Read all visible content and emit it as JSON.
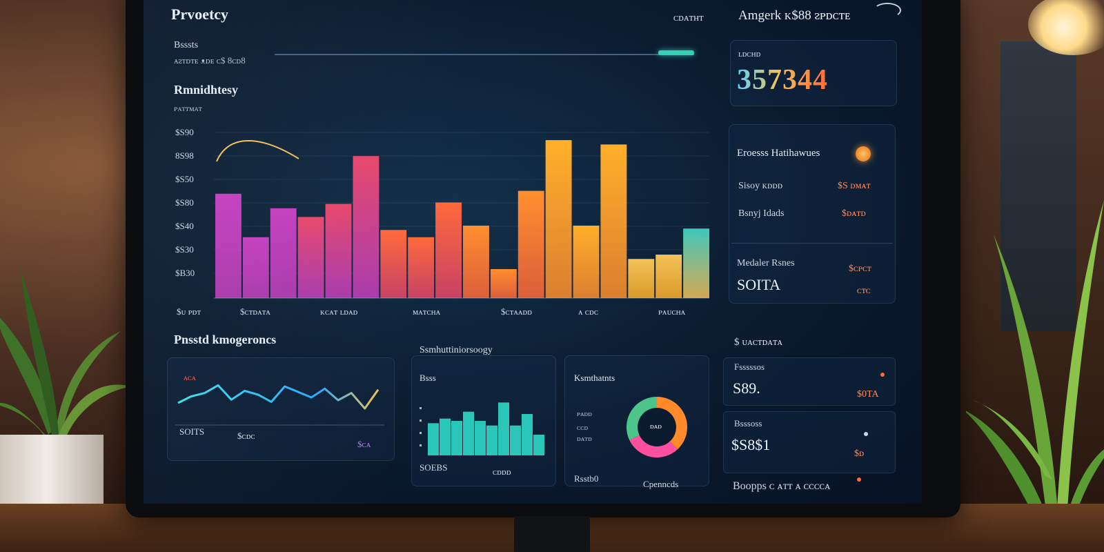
{
  "header": {
    "app_title": "Prvoetcy",
    "right_label": "ᴄᴅᴀᴛʜᴛ",
    "account_label": "Amgerk ᴋ$88 ᴤᴘᴅᴄᴛᴇ"
  },
  "summary": {
    "label": "Bsssts",
    "sub": "ᴀᴤᴛᴅᴛᴇ ᴥᴅᴇ ᴄ$ 8ᴄᴅ8",
    "progress": 0.92
  },
  "main_chart": {
    "title": "Rmnidhtesy",
    "subtitle": "ᴘᴀᴛᴛᴍᴀᴛ",
    "y_ticks": [
      "$S90",
      "8S98",
      "$S50",
      "$S80",
      "$S40",
      "$S30",
      "$B30"
    ],
    "x_ticks": [
      "$ᴜ ᴘᴅᴛ",
      "$ᴄᴛᴅᴀᴛᴀ",
      "ᴋᴄᴀᴛ ʟᴅᴀᴅ",
      "ᴍᴀᴛᴄʜᴀ",
      "$ᴄᴛᴀᴀᴅᴅ",
      "ᴀ ᴄᴅᴄ",
      "ᴘᴀᴜᴄʜᴀ"
    ],
    "colors": [
      "#c43fbf",
      "#e8476a",
      "#ff6a3a",
      "#ff8f2e",
      "#ffb02a",
      "#f2c25a",
      "#3cc7bd"
    ]
  },
  "chart_data": [
    {
      "type": "bar",
      "values": [
        72,
        42,
        62,
        56,
        65,
        98,
        47,
        42,
        66,
        50,
        20,
        74,
        109,
        50,
        106,
        27,
        30,
        48
      ],
      "ylim": [
        0,
        120
      ]
    },
    {
      "type": "line",
      "values": [
        40,
        52,
        58,
        72,
        46,
        62,
        55,
        42,
        70,
        60,
        50,
        66,
        45,
        58,
        30,
        64
      ],
      "ylim": [
        0,
        100
      ]
    },
    {
      "type": "bar",
      "values": [
        28,
        32,
        30,
        38,
        30,
        26,
        46,
        26,
        36,
        18
      ],
      "ylim": [
        0,
        60
      ]
    },
    {
      "type": "pie",
      "values": [
        38,
        30,
        32
      ],
      "colors": [
        "#ff8a2a",
        "#ff4fa0",
        "#4cc48a"
      ]
    }
  ],
  "top_right": {
    "label": "ʟᴅᴄʜᴅ",
    "value": "357344"
  },
  "right_panel": {
    "title": "Eroesss Hatihawues",
    "rows": [
      {
        "label": "Sisoy ᴋᴅᴅᴅ",
        "value": "$S ᴅᴍᴀᴛ"
      },
      {
        "label": "Bsnyj Idads",
        "value": "$ᴅᴀᴛᴅ"
      }
    ],
    "sub_title": "Medaler Rsnes",
    "sub_value": "SOITA",
    "sub_side_top": "$ᴄᴘᴄᴛ",
    "sub_side_bottom": "ᴄᴛᴄ"
  },
  "stats": {
    "heading": "$ ᴜᴀᴄᴛᴅᴀᴛᴀ",
    "cards": [
      {
        "label": "Fsssssos",
        "value": "S89.",
        "side": "$0TA"
      },
      {
        "label": "Bsssoss",
        "value": "$S8$1",
        "side": "$ᴅ"
      }
    ],
    "footer": "Boopps ᴄ ᴀᴛᴛ ᴀ ᴄᴄᴄᴄᴀ"
  },
  "bottom_left": {
    "title": "Pnsstd kmogeroncs",
    "legend": "ᴀᴄᴀ",
    "x_ticks": [
      "SOITS",
      "$ᴄᴅᴄ",
      "$ᴄᴀ"
    ]
  },
  "bottom_mid": {
    "title": "Ssmhuttiniorsoogy",
    "label": "Bsss",
    "x_ticks": [
      "SOEBS",
      "ᴄᴅᴅᴅ"
    ]
  },
  "bottom_right": {
    "title": "Ksmthatnts",
    "labels": [
      "ᴘᴀᴅᴅ",
      "ᴄᴄᴅ",
      "ᴅᴀᴛᴅ"
    ],
    "center": "ᴅᴀᴅ",
    "footer_left": "Rsstb0",
    "footer_right": "Cpenncds"
  }
}
